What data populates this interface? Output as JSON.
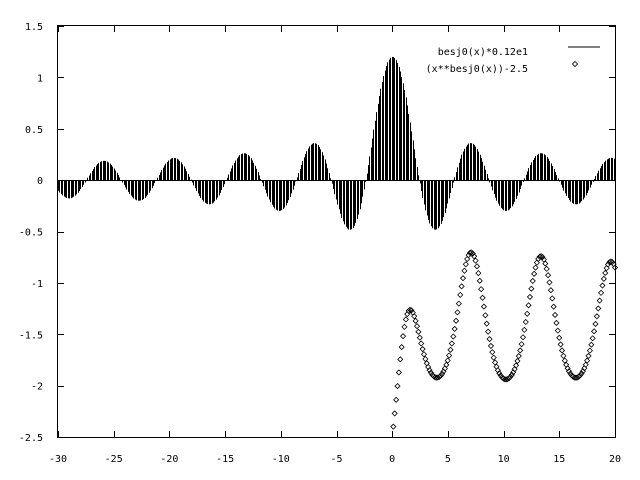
{
  "chart_data": {
    "type": "line",
    "xlim": [
      -30,
      20
    ],
    "ylim": [
      -2.5,
      1.5
    ],
    "x_ticks": [
      -30,
      -25,
      -20,
      -15,
      -10,
      -5,
      0,
      5,
      10,
      15,
      20
    ],
    "x_tick_labels": [
      "-30",
      "-25",
      "-20",
      "-15",
      "-10",
      "-5",
      "0",
      "5",
      "10",
      "15",
      "20"
    ],
    "y_ticks": [
      -2.5,
      -2,
      -1.5,
      -1,
      -0.5,
      0,
      0.5,
      1,
      1.5
    ],
    "y_tick_labels": [
      "-2.5",
      "-2",
      "-1.5",
      "-1",
      "-0.5",
      "0",
      "0.5",
      "1",
      "1.5"
    ],
    "grid": false,
    "legend_position": "top-right",
    "colors": {
      "axes": "#000000",
      "series": "#000000"
    },
    "series": [
      {
        "name": "besj0(x)*0.12e1",
        "style": "impulses",
        "x_range": [
          -30,
          20
        ],
        "samples": 400,
        "formula": "besj0(x)*1.2",
        "legend_symbol": "line"
      },
      {
        "name": "(x**besj0(x))-2.5",
        "style": "points",
        "marker": "diamond",
        "x_range": [
          0.1,
          20
        ],
        "samples": 160,
        "formula": "x**besj0(x)-2.5",
        "legend_symbol": "diamond"
      }
    ]
  }
}
